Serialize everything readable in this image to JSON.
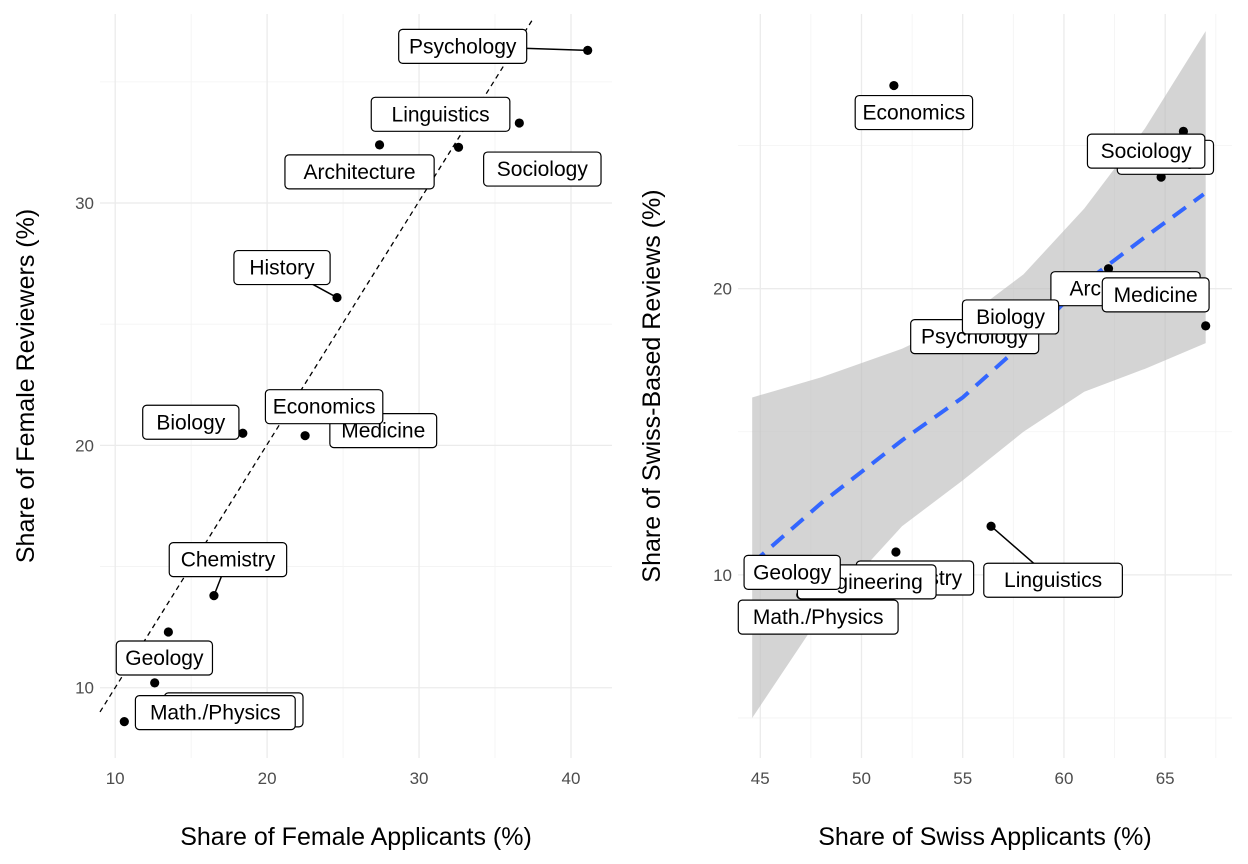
{
  "chart_data": [
    {
      "type": "scatter",
      "title": "",
      "xlabel": "Share of Female Applicants (%)",
      "ylabel": "Share of Female Reviewers (%)",
      "xlim": [
        9,
        42.7
      ],
      "ylim": [
        7.1,
        37.8
      ],
      "xticks": [
        10,
        20,
        30,
        40
      ],
      "yticks": [
        10,
        20,
        30
      ],
      "grid": true,
      "reference_line": {
        "style": "dashed",
        "from": [
          9,
          9.0
        ],
        "to": [
          37.5,
          37.6
        ]
      },
      "points": [
        {
          "label": "Psychology",
          "x": 41.1,
          "y": 36.3
        },
        {
          "label": "Sociology",
          "x": 36.6,
          "y": 33.3
        },
        {
          "label": "Architecture",
          "x": 27.4,
          "y": 32.4
        },
        {
          "label": "Linguistics",
          "x": 32.6,
          "y": 32.3
        },
        {
          "label": "History",
          "x": 24.6,
          "y": 26.1
        },
        {
          "label": "Medicine",
          "x": 23.3,
          "y": 21.6
        },
        {
          "label": "Biology",
          "x": 18.4,
          "y": 20.5
        },
        {
          "label": "Economics",
          "x": 22.5,
          "y": 20.4
        },
        {
          "label": "Chemistry",
          "x": 16.5,
          "y": 13.8
        },
        {
          "label": "Geology",
          "x": 13.5,
          "y": 12.3
        },
        {
          "label": "Engineering",
          "x": 12.6,
          "y": 10.2
        },
        {
          "label": "Math./Physics",
          "x": 10.6,
          "y": 8.6
        }
      ]
    },
    {
      "type": "scatter",
      "title": "",
      "xlabel": "Share of Swiss Applicants (%)",
      "ylabel": "Share of Swiss-Based Reviews (%)",
      "xlim": [
        43.9,
        68.3
      ],
      "ylim": [
        3.6,
        29.6
      ],
      "xticks": [
        45,
        50,
        55,
        60,
        65
      ],
      "yticks": [
        10,
        20
      ],
      "grid": true,
      "fit": {
        "style": "dashed",
        "color": "#3366ff",
        "line": [
          [
            44.6,
            10.4
          ],
          [
            48,
            12.5
          ],
          [
            52,
            14.7
          ],
          [
            55,
            16.2
          ],
          [
            58,
            18.1
          ],
          [
            61,
            20.2
          ],
          [
            64,
            21.8
          ],
          [
            66.9,
            23.3
          ]
        ],
        "ribbon_upper": [
          [
            44.6,
            16.2
          ],
          [
            48,
            16.9
          ],
          [
            52,
            17.9
          ],
          [
            55,
            18.9
          ],
          [
            58,
            20.5
          ],
          [
            61,
            22.8
          ],
          [
            64,
            25.6
          ],
          [
            67,
            29.0
          ]
        ],
        "ribbon_lower": [
          [
            44.6,
            5.0
          ],
          [
            48,
            8.6
          ],
          [
            52,
            11.7
          ],
          [
            55,
            13.3
          ],
          [
            58,
            15.0
          ],
          [
            61,
            16.4
          ],
          [
            64,
            17.2
          ],
          [
            67,
            18.1
          ]
        ]
      },
      "points": [
        {
          "label": "Economics",
          "x": 51.6,
          "y": 27.1
        },
        {
          "label": "History",
          "x": 65.9,
          "y": 25.5
        },
        {
          "label": "Sociology",
          "x": 64.8,
          "y": 23.9
        },
        {
          "label": "Architecture",
          "x": 62.2,
          "y": 20.7
        },
        {
          "label": "Psychology",
          "x": 58.9,
          "y": 19.2
        },
        {
          "label": "Medicine",
          "x": 67.0,
          "y": 18.7
        },
        {
          "label": "Biology",
          "x": 58.3,
          "y": 18.0
        },
        {
          "label": "Linguistics",
          "x": 56.4,
          "y": 11.7
        },
        {
          "label": "Chemistry",
          "x": 51.7,
          "y": 10.8
        },
        {
          "label": "Math./Physics",
          "x": 44.7,
          "y": 10.2
        },
        {
          "label": "Engineering",
          "x": 47.0,
          "y": 9.3
        },
        {
          "label": "Geology",
          "x": 44.6,
          "y": 8.9
        }
      ]
    }
  ]
}
